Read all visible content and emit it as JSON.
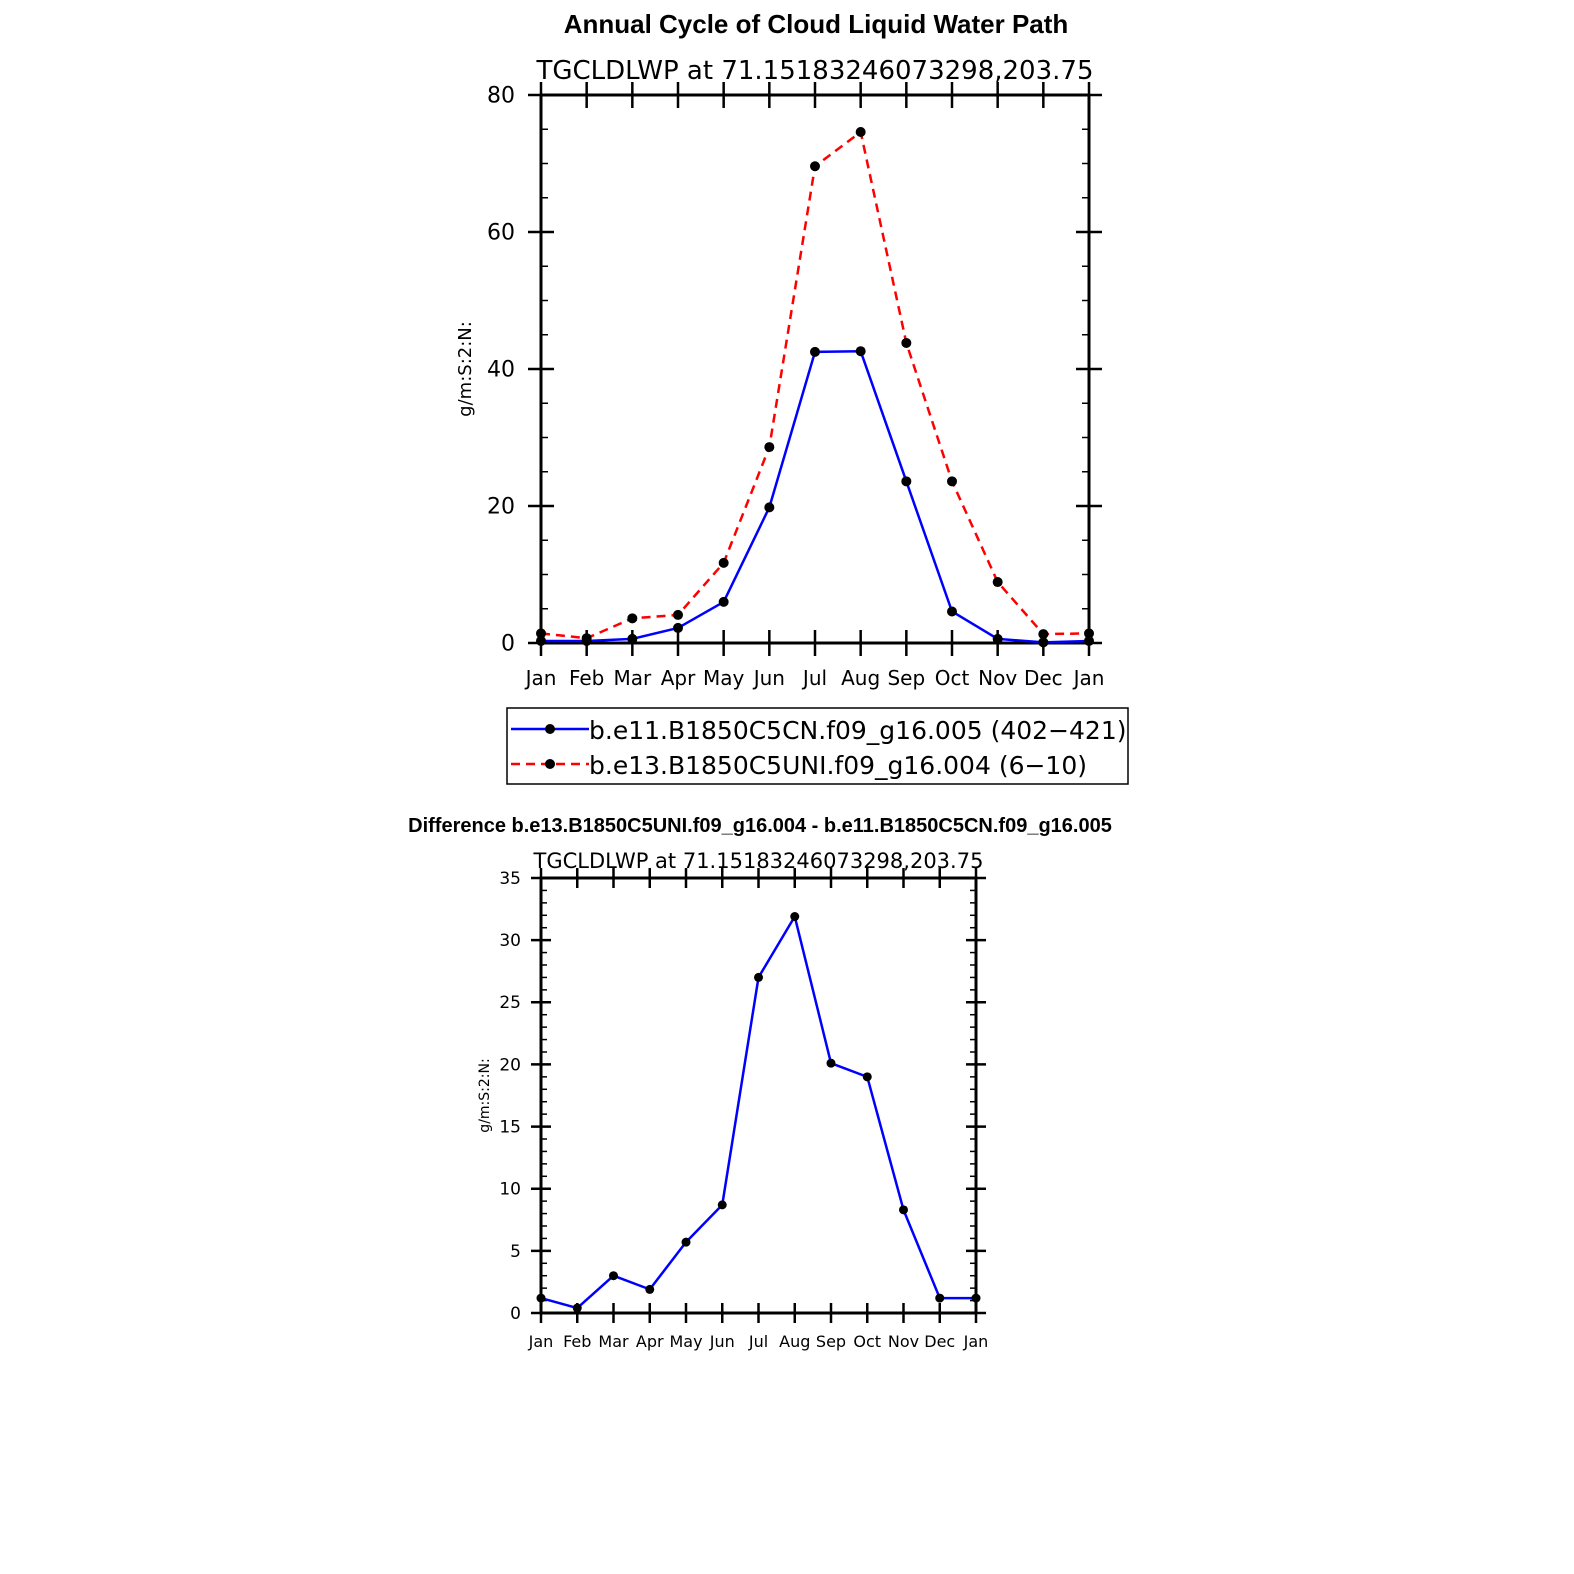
{
  "figure": {
    "main_title": "Annual Cycle of Cloud Liquid Water Path",
    "diff_title": "Difference b.e13.B1850C5UNI.f09_g16.004 - b.e11.B1850C5CN.f09_g16.005"
  },
  "legend": {
    "entries": [
      {
        "label": "b.e11.B1850C5CN.f09_g16.005 (402−421)",
        "color": "#0000ff",
        "dash": "solid"
      },
      {
        "label": "b.e13.B1850C5UNI.f09_g16.004 (6−10)",
        "color": "#ff0000",
        "dash": "dashed"
      }
    ]
  },
  "chart_data": [
    {
      "type": "line",
      "title": "TGCLDLWP  at  71.15183246073298,203.75",
      "ylabel": "g/m:S:2:N:",
      "xlabel": "",
      "categories": [
        "Jan",
        "Feb",
        "Mar",
        "Apr",
        "May",
        "Jun",
        "Jul",
        "Aug",
        "Sep",
        "Oct",
        "Nov",
        "Dec",
        "Jan"
      ],
      "ylim": [
        0,
        80
      ],
      "yticks": [
        0,
        20,
        40,
        60,
        80
      ],
      "y_minor_step": 5,
      "series": [
        {
          "name": "b.e11.B1850C5CN.f09_g16.005 (402−421)",
          "color": "#0000ff",
          "dash": "solid",
          "values": [
            0.3,
            0.3,
            0.6,
            2.2,
            6.0,
            19.8,
            42.5,
            42.6,
            23.6,
            4.6,
            0.6,
            0.1,
            0.3
          ]
        },
        {
          "name": "b.e13.B1850C5UNI.f09_g16.004 (6−10)",
          "color": "#ff0000",
          "dash": "dashed",
          "values": [
            1.4,
            0.7,
            3.6,
            4.1,
            11.7,
            28.6,
            69.6,
            74.6,
            43.8,
            23.6,
            8.9,
            1.3,
            1.4
          ]
        }
      ],
      "legend": "below"
    },
    {
      "type": "line",
      "title": "TGCLDLWP  at  71.15183246073298,203.75",
      "ylabel": "g/m:S:2:N:",
      "xlabel": "",
      "categories": [
        "Jan",
        "Feb",
        "Mar",
        "Apr",
        "May",
        "Jun",
        "Jul",
        "Aug",
        "Sep",
        "Oct",
        "Nov",
        "Dec",
        "Jan"
      ],
      "ylim": [
        0,
        35
      ],
      "yticks": [
        0,
        5,
        10,
        15,
        20,
        25,
        30,
        35
      ],
      "y_minor_step": 1,
      "series": [
        {
          "name": "",
          "color": "#0000ff",
          "dash": "solid",
          "values": [
            1.2,
            0.4,
            3.0,
            1.9,
            5.7,
            8.7,
            27.0,
            31.9,
            20.1,
            19.0,
            8.3,
            1.2,
            1.2
          ]
        }
      ]
    }
  ]
}
